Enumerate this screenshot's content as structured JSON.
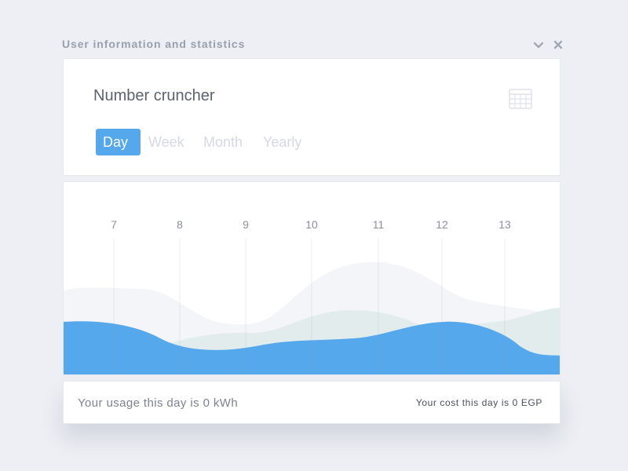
{
  "widget": {
    "title": "User information and statistics",
    "icons": [
      "chevron-down-icon",
      "close-icon"
    ]
  },
  "card": {
    "title": "Number cruncher",
    "icon": "table-icon",
    "tabs": [
      {
        "label": "Day",
        "active": true
      },
      {
        "label": "Week",
        "active": false
      },
      {
        "label": "Month",
        "active": false
      },
      {
        "label": "Yearly",
        "active": false
      }
    ]
  },
  "chart_data": {
    "type": "area",
    "x": [
      7,
      8,
      9,
      10,
      11,
      12,
      13
    ],
    "tick_labels": [
      "7",
      "8",
      "9",
      "10",
      "11",
      "12",
      "13"
    ],
    "title": "",
    "xlabel": "",
    "ylabel": "",
    "grid": "vertical",
    "series": [
      {
        "color": "#f3f5f8"
      },
      {
        "color": "#e3ecec"
      },
      {
        "color": "#55a8ec"
      }
    ]
  },
  "footer": {
    "usage_text": "Your usage this day is 0 kWh",
    "cost_text": "Your cost this day is 0 EGP"
  },
  "colors": {
    "background": "#edeff4",
    "accent": "#55a8ec",
    "title_text": "#9a9fac"
  }
}
